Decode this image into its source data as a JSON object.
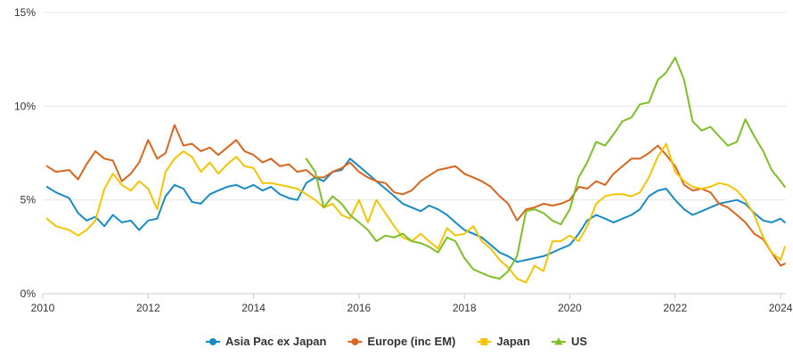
{
  "chart_data": {
    "type": "line",
    "title": "",
    "xlabel": "",
    "ylabel": "",
    "xlim": [
      2010,
      2024.1
    ],
    "ylim": [
      0,
      15
    ],
    "x_ticks": [
      2010,
      2012,
      2014,
      2016,
      2018,
      2020,
      2022,
      2024
    ],
    "x_tick_labels": [
      "2010",
      "2012",
      "2014",
      "2016",
      "2018",
      "2020",
      "2022",
      "2024"
    ],
    "y_ticks": [
      0,
      5,
      10,
      15
    ],
    "y_tick_labels": [
      "0%",
      "5%",
      "10%",
      "15%"
    ],
    "grid": {
      "horizontal": true,
      "vertical": false
    },
    "legend_position": "bottom-center",
    "series": [
      {
        "name": "Asia Pac ex Japan",
        "color": "#1a8ac4",
        "marker": "circle",
        "x": [
          2010.08,
          2010.25,
          2010.5,
          2010.67,
          2010.83,
          2011.0,
          2011.17,
          2011.33,
          2011.5,
          2011.67,
          2011.83,
          2012.0,
          2012.17,
          2012.33,
          2012.5,
          2012.67,
          2012.83,
          2013.0,
          2013.17,
          2013.33,
          2013.5,
          2013.67,
          2013.83,
          2014.0,
          2014.17,
          2014.33,
          2014.5,
          2014.67,
          2014.83,
          2015.0,
          2015.17,
          2015.33,
          2015.5,
          2015.67,
          2015.83,
          2016.0,
          2016.17,
          2016.33,
          2016.5,
          2016.67,
          2016.83,
          2017.0,
          2017.17,
          2017.33,
          2017.5,
          2017.67,
          2017.83,
          2018.0,
          2018.17,
          2018.33,
          2018.5,
          2018.67,
          2018.83,
          2019.0,
          2019.17,
          2019.33,
          2019.5,
          2019.67,
          2019.83,
          2020.0,
          2020.17,
          2020.33,
          2020.5,
          2020.67,
          2020.83,
          2021.0,
          2021.17,
          2021.33,
          2021.5,
          2021.67,
          2021.83,
          2022.0,
          2022.17,
          2022.33,
          2022.5,
          2022.67,
          2022.83,
          2023.0,
          2023.17,
          2023.33,
          2023.5,
          2023.67,
          2023.83,
          2024.0,
          2024.08
        ],
        "values": [
          5.7,
          5.4,
          5.1,
          4.3,
          3.9,
          4.1,
          3.6,
          4.2,
          3.8,
          3.9,
          3.4,
          3.9,
          4.0,
          5.2,
          5.8,
          5.6,
          4.9,
          4.8,
          5.3,
          5.5,
          5.7,
          5.8,
          5.6,
          5.8,
          5.5,
          5.7,
          5.3,
          5.1,
          5.0,
          5.9,
          6.2,
          6.0,
          6.5,
          6.6,
          7.2,
          6.8,
          6.4,
          6.0,
          5.6,
          5.2,
          4.8,
          4.6,
          4.4,
          4.7,
          4.5,
          4.2,
          3.8,
          3.4,
          3.2,
          3.0,
          2.6,
          2.2,
          2.0,
          1.7,
          1.8,
          1.9,
          2.0,
          2.2,
          2.4,
          2.6,
          3.2,
          3.9,
          4.2,
          4.0,
          3.8,
          4.0,
          4.2,
          4.5,
          5.2,
          5.5,
          5.6,
          5.0,
          4.5,
          4.2,
          4.4,
          4.6,
          4.8,
          4.9,
          5.0,
          4.8,
          4.3,
          3.9,
          3.8,
          4.0,
          3.8
        ]
      },
      {
        "name": "Europe (inc EM)",
        "color": "#d9661e",
        "marker": "circle",
        "x": [
          2010.08,
          2010.25,
          2010.5,
          2010.67,
          2010.83,
          2011.0,
          2011.17,
          2011.33,
          2011.5,
          2011.67,
          2011.83,
          2012.0,
          2012.17,
          2012.33,
          2012.5,
          2012.67,
          2012.83,
          2013.0,
          2013.17,
          2013.33,
          2013.5,
          2013.67,
          2013.83,
          2014.0,
          2014.17,
          2014.33,
          2014.5,
          2014.67,
          2014.83,
          2015.0,
          2015.17,
          2015.33,
          2015.5,
          2015.67,
          2015.83,
          2016.0,
          2016.17,
          2016.33,
          2016.5,
          2016.67,
          2016.83,
          2017.0,
          2017.17,
          2017.33,
          2017.5,
          2017.67,
          2017.83,
          2018.0,
          2018.17,
          2018.33,
          2018.5,
          2018.67,
          2018.83,
          2019.0,
          2019.17,
          2019.33,
          2019.5,
          2019.67,
          2019.83,
          2020.0,
          2020.17,
          2020.33,
          2020.5,
          2020.67,
          2020.83,
          2021.0,
          2021.17,
          2021.33,
          2021.5,
          2021.67,
          2021.83,
          2022.0,
          2022.17,
          2022.33,
          2022.5,
          2022.67,
          2022.83,
          2023.0,
          2023.17,
          2023.33,
          2023.5,
          2023.67,
          2023.83,
          2024.0,
          2024.08
        ],
        "values": [
          6.8,
          6.5,
          6.6,
          6.1,
          6.9,
          7.6,
          7.2,
          7.1,
          6.0,
          6.4,
          7.0,
          8.2,
          7.2,
          7.5,
          9.0,
          7.9,
          8.0,
          7.6,
          7.8,
          7.4,
          7.8,
          8.2,
          7.6,
          7.4,
          7.0,
          7.2,
          6.8,
          6.9,
          6.5,
          6.6,
          6.2,
          6.2,
          6.5,
          6.7,
          7.0,
          6.5,
          6.2,
          6.0,
          5.9,
          5.4,
          5.3,
          5.5,
          6.0,
          6.3,
          6.6,
          6.7,
          6.8,
          6.4,
          6.2,
          6.0,
          5.7,
          5.2,
          4.8,
          3.9,
          4.5,
          4.6,
          4.8,
          4.7,
          4.8,
          5.0,
          5.7,
          5.6,
          6.0,
          5.8,
          6.4,
          6.8,
          7.2,
          7.2,
          7.5,
          7.9,
          7.4,
          6.8,
          5.8,
          5.5,
          5.6,
          5.4,
          4.8,
          4.6,
          4.2,
          3.8,
          3.2,
          2.9,
          2.2,
          1.5,
          1.6
        ]
      },
      {
        "name": "Japan",
        "color": "#f5c400",
        "marker": "square",
        "x": [
          2010.08,
          2010.25,
          2010.5,
          2010.67,
          2010.83,
          2011.0,
          2011.17,
          2011.33,
          2011.5,
          2011.67,
          2011.83,
          2012.0,
          2012.17,
          2012.33,
          2012.5,
          2012.67,
          2012.83,
          2013.0,
          2013.17,
          2013.33,
          2013.5,
          2013.67,
          2013.83,
          2014.0,
          2014.17,
          2014.33,
          2014.5,
          2014.67,
          2014.83,
          2015.0,
          2015.17,
          2015.33,
          2015.5,
          2015.67,
          2015.83,
          2016.0,
          2016.17,
          2016.33,
          2016.5,
          2016.67,
          2016.83,
          2017.0,
          2017.17,
          2017.33,
          2017.5,
          2017.67,
          2017.83,
          2018.0,
          2018.17,
          2018.33,
          2018.5,
          2018.67,
          2018.83,
          2019.0,
          2019.17,
          2019.33,
          2019.5,
          2019.67,
          2019.83,
          2020.0,
          2020.17,
          2020.33,
          2020.5,
          2020.67,
          2020.83,
          2021.0,
          2021.17,
          2021.33,
          2021.5,
          2021.67,
          2021.83,
          2022.0,
          2022.17,
          2022.33,
          2022.5,
          2022.67,
          2022.83,
          2023.0,
          2023.17,
          2023.33,
          2023.5,
          2023.67,
          2023.83,
          2024.0,
          2024.08
        ],
        "values": [
          4.0,
          3.6,
          3.4,
          3.1,
          3.4,
          3.9,
          5.6,
          6.4,
          5.8,
          5.5,
          6.0,
          5.6,
          4.5,
          6.5,
          7.2,
          7.6,
          7.3,
          6.5,
          7.0,
          6.4,
          6.9,
          7.3,
          6.8,
          6.7,
          5.9,
          5.9,
          5.8,
          5.7,
          5.6,
          5.3,
          5.0,
          4.6,
          4.8,
          4.2,
          4.0,
          5.0,
          3.8,
          5.0,
          4.3,
          3.6,
          3.0,
          2.8,
          3.2,
          2.8,
          2.4,
          3.5,
          3.1,
          3.2,
          3.6,
          2.8,
          2.4,
          1.8,
          1.4,
          0.8,
          0.6,
          1.5,
          1.2,
          2.8,
          2.8,
          3.1,
          2.8,
          3.6,
          4.8,
          5.2,
          5.3,
          5.3,
          5.2,
          5.4,
          6.2,
          7.3,
          8.0,
          6.5,
          6.0,
          5.7,
          5.6,
          5.7,
          5.9,
          5.8,
          5.5,
          5.0,
          4.2,
          3.0,
          2.2,
          1.8,
          2.5
        ]
      },
      {
        "name": "US",
        "color": "#7dbf26",
        "marker": "triangle",
        "x": [
          2015.0,
          2015.17,
          2015.33,
          2015.5,
          2015.67,
          2015.83,
          2016.0,
          2016.17,
          2016.33,
          2016.5,
          2016.67,
          2016.83,
          2017.0,
          2017.17,
          2017.33,
          2017.5,
          2017.67,
          2017.83,
          2018.0,
          2018.17,
          2018.33,
          2018.5,
          2018.67,
          2018.83,
          2019.0,
          2019.17,
          2019.33,
          2019.5,
          2019.67,
          2019.83,
          2020.0,
          2020.17,
          2020.33,
          2020.5,
          2020.67,
          2020.83,
          2021.0,
          2021.17,
          2021.33,
          2021.5,
          2021.67,
          2021.83,
          2022.0,
          2022.17,
          2022.33,
          2022.5,
          2022.67,
          2022.83,
          2023.0,
          2023.17,
          2023.33,
          2023.5,
          2023.67,
          2023.83,
          2024.0,
          2024.08
        ],
        "values": [
          7.2,
          6.5,
          4.6,
          5.2,
          4.8,
          4.2,
          3.8,
          3.4,
          2.8,
          3.1,
          3.0,
          3.2,
          2.8,
          2.7,
          2.5,
          2.2,
          3.0,
          2.8,
          1.9,
          1.3,
          1.1,
          0.9,
          0.8,
          1.2,
          2.0,
          4.4,
          4.5,
          4.3,
          3.9,
          3.7,
          4.5,
          6.2,
          7.0,
          8.1,
          7.9,
          8.5,
          9.2,
          9.4,
          10.1,
          10.2,
          11.4,
          11.8,
          12.6,
          11.4,
          9.2,
          8.7,
          8.9,
          8.4,
          7.9,
          8.1,
          9.3,
          8.4,
          7.6,
          6.6,
          6.0,
          5.7
        ]
      }
    ]
  }
}
